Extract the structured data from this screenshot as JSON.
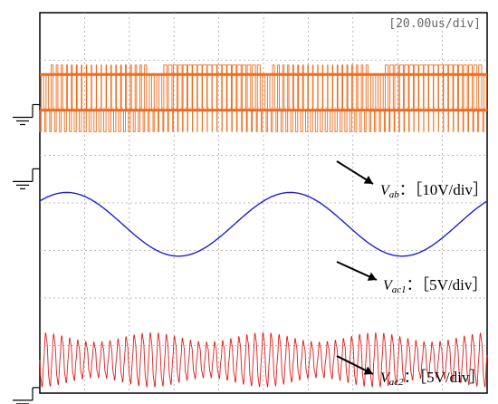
{
  "chart_data": {
    "type": "line",
    "title": "",
    "timebase": "[20.00us/div]",
    "grid": true,
    "divisions": {
      "x": 10,
      "y": 8
    },
    "x_unit": "us",
    "x_per_div": 20,
    "x_range": [
      0,
      200
    ],
    "series": [
      {
        "name": "Vab",
        "label_symbol": "V",
        "label_subscript": "ab",
        "label_scale": "：［10V/div］",
        "volts_per_div": 10,
        "color": "#f26a1b",
        "waveform": "two-level PWM pulse train",
        "levels_div": [
          1.0,
          0.0
        ],
        "envelope_period_us": 100,
        "ground_marker_div": 2.2
      },
      {
        "name": "Vac1",
        "label_symbol": "V",
        "label_subscript": "ac1",
        "label_scale": "：［5V/div］",
        "volts_per_div": 5,
        "color": "#1f1fd6",
        "waveform": "sine",
        "amplitude_div": 0.67,
        "period_us": 100,
        "offset_div": 4.45,
        "ground_marker_div": 3.55
      },
      {
        "name": "Vac2",
        "label_symbol": "V",
        "label_subscript": "ac2",
        "label_scale": "：［5V/div］",
        "volts_per_div": 5,
        "color": "#e51a1a",
        "waveform": "high-frequency sine, amplitude-modulated",
        "carrier_period_us": 3.6,
        "amplitude_div": [
          0.35,
          0.55
        ],
        "offset_div": 7.3,
        "ground_marker_div": 8.15
      }
    ]
  }
}
